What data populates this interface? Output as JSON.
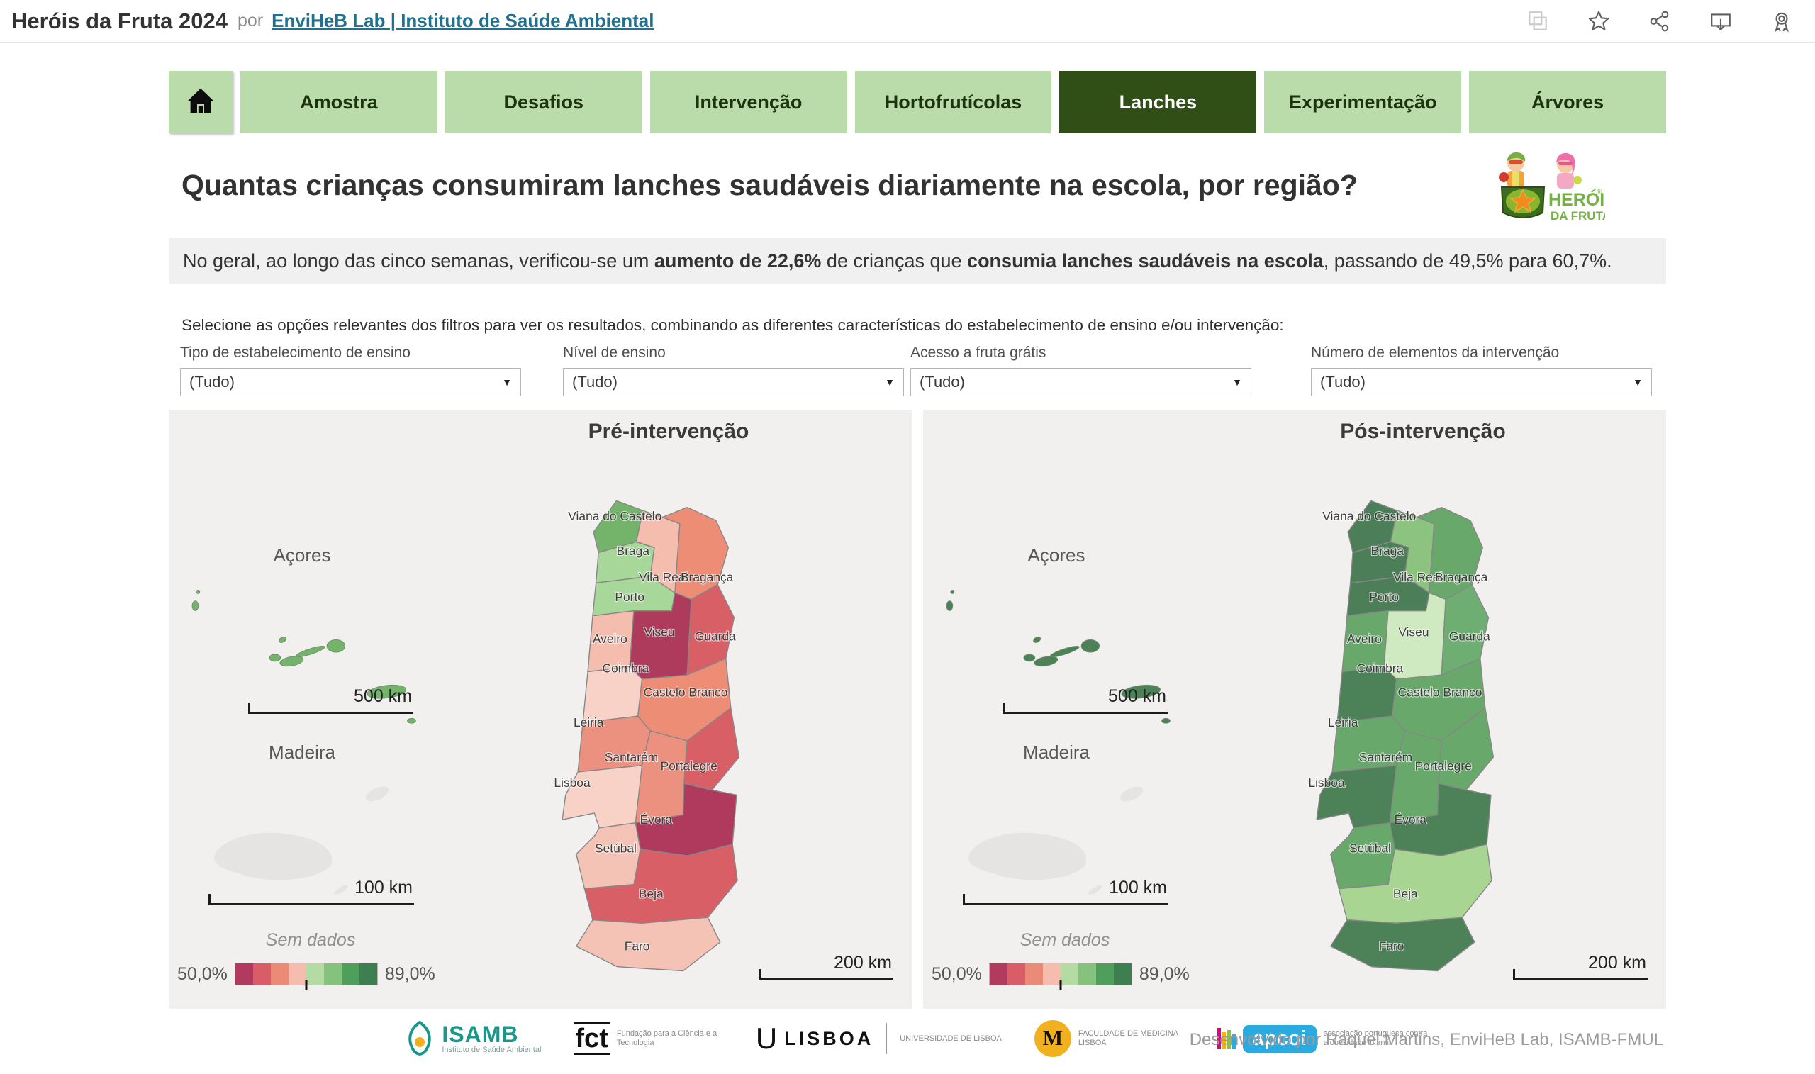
{
  "header": {
    "title": "Heróis da Fruta 2024",
    "byline": "por",
    "link": "EnviHeB Lab | Instituto de Saúde Ambiental",
    "icons": [
      "copy-icon",
      "favorite-star-icon",
      "share-icon",
      "download-icon",
      "award-icon"
    ]
  },
  "tabs": {
    "items": [
      {
        "label": "Amostra",
        "active": false
      },
      {
        "label": "Desafios",
        "active": false
      },
      {
        "label": "Intervenção",
        "active": false
      },
      {
        "label": "Hortofrutícolas",
        "active": false
      },
      {
        "label": "Lanches",
        "active": true
      },
      {
        "label": "Experimentação",
        "active": false
      },
      {
        "label": "Árvores",
        "active": false
      }
    ]
  },
  "question": "Quantas crianças consumiram lanches saudáveis diariamente na escola, por região?",
  "logo": {
    "line1": "HERÓIS",
    "line2": "DA FRUTA"
  },
  "summary": {
    "p1": "No geral, ao longo das cinco semanas, verificou-se um ",
    "p2": "aumento de 22,6%",
    "p3": " de crianças que ",
    "p4": "consumia lanches saudáveis na escola",
    "p5": ", passando de 49,5% para 60,7%."
  },
  "instruction": "Selecione as opções relevantes dos filtros para ver os resultados, combinando as diferentes características do estabelecimento de ensino e/ou intervenção:",
  "filters": [
    {
      "label": "Tipo de estabelecimento de ensino",
      "value": "(Tudo)"
    },
    {
      "label": "Nível de ensino",
      "value": "(Tudo)"
    },
    {
      "label": "Acesso a fruta grátis",
      "value": "(Tudo)"
    },
    {
      "label": "Número de elementos da intervenção",
      "value": "(Tudo)"
    }
  ],
  "maps": [
    {
      "id": "pre",
      "title": "Pré-intervenção"
    },
    {
      "id": "post",
      "title": "Pós-intervenção"
    }
  ],
  "map_common": {
    "azores_label": "Açores",
    "madeira_label": "Madeira",
    "scale_azores": "500 km",
    "scale_madeira": "100 km",
    "scale_mainland": "200 km",
    "no_data": "Sem dados",
    "legend_min": "50,0%",
    "legend_max": "89,0%"
  },
  "chart_data": {
    "type": "heatmap",
    "subtype": "paired-choropleth-maps",
    "measure": "% de crianças que consumiram lanches saudáveis diariamente na escola, por região",
    "map_titles": [
      "Pré-intervenção",
      "Pós-intervenção"
    ],
    "overall": {
      "pre": "49,5%",
      "post": "60,7%",
      "increase": "22,6%"
    },
    "legend": {
      "min": 50.0,
      "max": 89.0,
      "min_label": "50,0%",
      "max_label": "89,0%",
      "no_data_label": "Sem dados",
      "colors": [
        "#b23a5e",
        "#d95c66",
        "#eb8a76",
        "#f6bdae",
        "#b5dba5",
        "#85c27b",
        "#4f9e5c",
        "#3d7f50"
      ]
    },
    "districts": [
      {
        "id": "viana_do_castelo",
        "label": "Viana do Castelo",
        "pre_color": "#74b36a",
        "post_color": "#4c7f57"
      },
      {
        "id": "braga",
        "label": "Braga",
        "pre_color": "#a8d79a",
        "post_color": "#4c7f57"
      },
      {
        "id": "vila_real",
        "label": "Vila Real",
        "pre_color": "#f5bdae",
        "post_color": "#8cc37f"
      },
      {
        "id": "braganca",
        "label": "Bragança",
        "pre_color": "#ee8d75",
        "post_color": "#68a86b"
      },
      {
        "id": "porto",
        "label": "Porto",
        "pre_color": "#a8d79a",
        "post_color": "#4c7f57"
      },
      {
        "id": "aveiro",
        "label": "Aveiro",
        "pre_color": "#f5bdae",
        "post_color": "#68a86b"
      },
      {
        "id": "viseu",
        "label": "Viseu",
        "pre_color": "#ae3a5c",
        "post_color": "#cfe9c0"
      },
      {
        "id": "guarda",
        "label": "Guarda",
        "pre_color": "#d95f66",
        "post_color": "#6fae72"
      },
      {
        "id": "coimbra",
        "label": "Coimbra",
        "pre_color": "#f8d2c6",
        "post_color": "#4d8157"
      },
      {
        "id": "castelo_branco",
        "label": "Castelo Branco",
        "pre_color": "#ee8d75",
        "post_color": "#68a86b"
      },
      {
        "id": "leiria",
        "label": "Leiria",
        "pre_color": "#ec9180",
        "post_color": "#68a86b"
      },
      {
        "id": "santarem",
        "label": "Santarém",
        "pre_color": "#ec9180",
        "post_color": "#68a86b"
      },
      {
        "id": "portalegre",
        "label": "Portalegre",
        "pre_color": "#d95f66",
        "post_color": "#68a86b"
      },
      {
        "id": "lisboa",
        "label": "Lisboa",
        "pre_color": "#f8d2c6",
        "post_color": "#4d8157"
      },
      {
        "id": "evora",
        "label": "Évora",
        "pre_color": "#b03a5e",
        "post_color": "#4d8157"
      },
      {
        "id": "setubal",
        "label": "Setúbal",
        "pre_color": "#f5c3b6",
        "post_color": "#68a86b"
      },
      {
        "id": "beja",
        "label": "Beja",
        "pre_color": "#d95f66",
        "post_color": "#a9d593"
      },
      {
        "id": "faro",
        "label": "Faro",
        "pre_color": "#f5c3b6",
        "post_color": "#4d8157"
      }
    ],
    "islands": {
      "acores": {
        "label": "Açores",
        "pre_color": "#74b36a",
        "post_color": "#4d8157"
      },
      "madeira": {
        "label": "Madeira",
        "pre_color": "#e5e4e2",
        "post_color": "#e5e4e2"
      }
    }
  },
  "footer": {
    "logos": [
      {
        "id": "isamb",
        "text": "ISAMB",
        "sub": "Instituto de Saúde Ambiental"
      },
      {
        "id": "fct",
        "text": "fct",
        "sub": "Fundação para a Ciência e a Tecnologia"
      },
      {
        "id": "ulisboa",
        "prefix": "U",
        "text": "LISBOA",
        "sub": "UNIVERSIDADE DE LISBOA"
      },
      {
        "id": "fmul",
        "text": "M",
        "sub": "FACULDADE DE MEDICINA LISBOA"
      },
      {
        "id": "apcoi",
        "text": "apcoi",
        "sub": "associação portuguesa contra a obesidade infantil"
      }
    ],
    "credit": "Desenvolvido por Raquel Martins, EnviHeB Lab, ISAMB-FMUL"
  }
}
